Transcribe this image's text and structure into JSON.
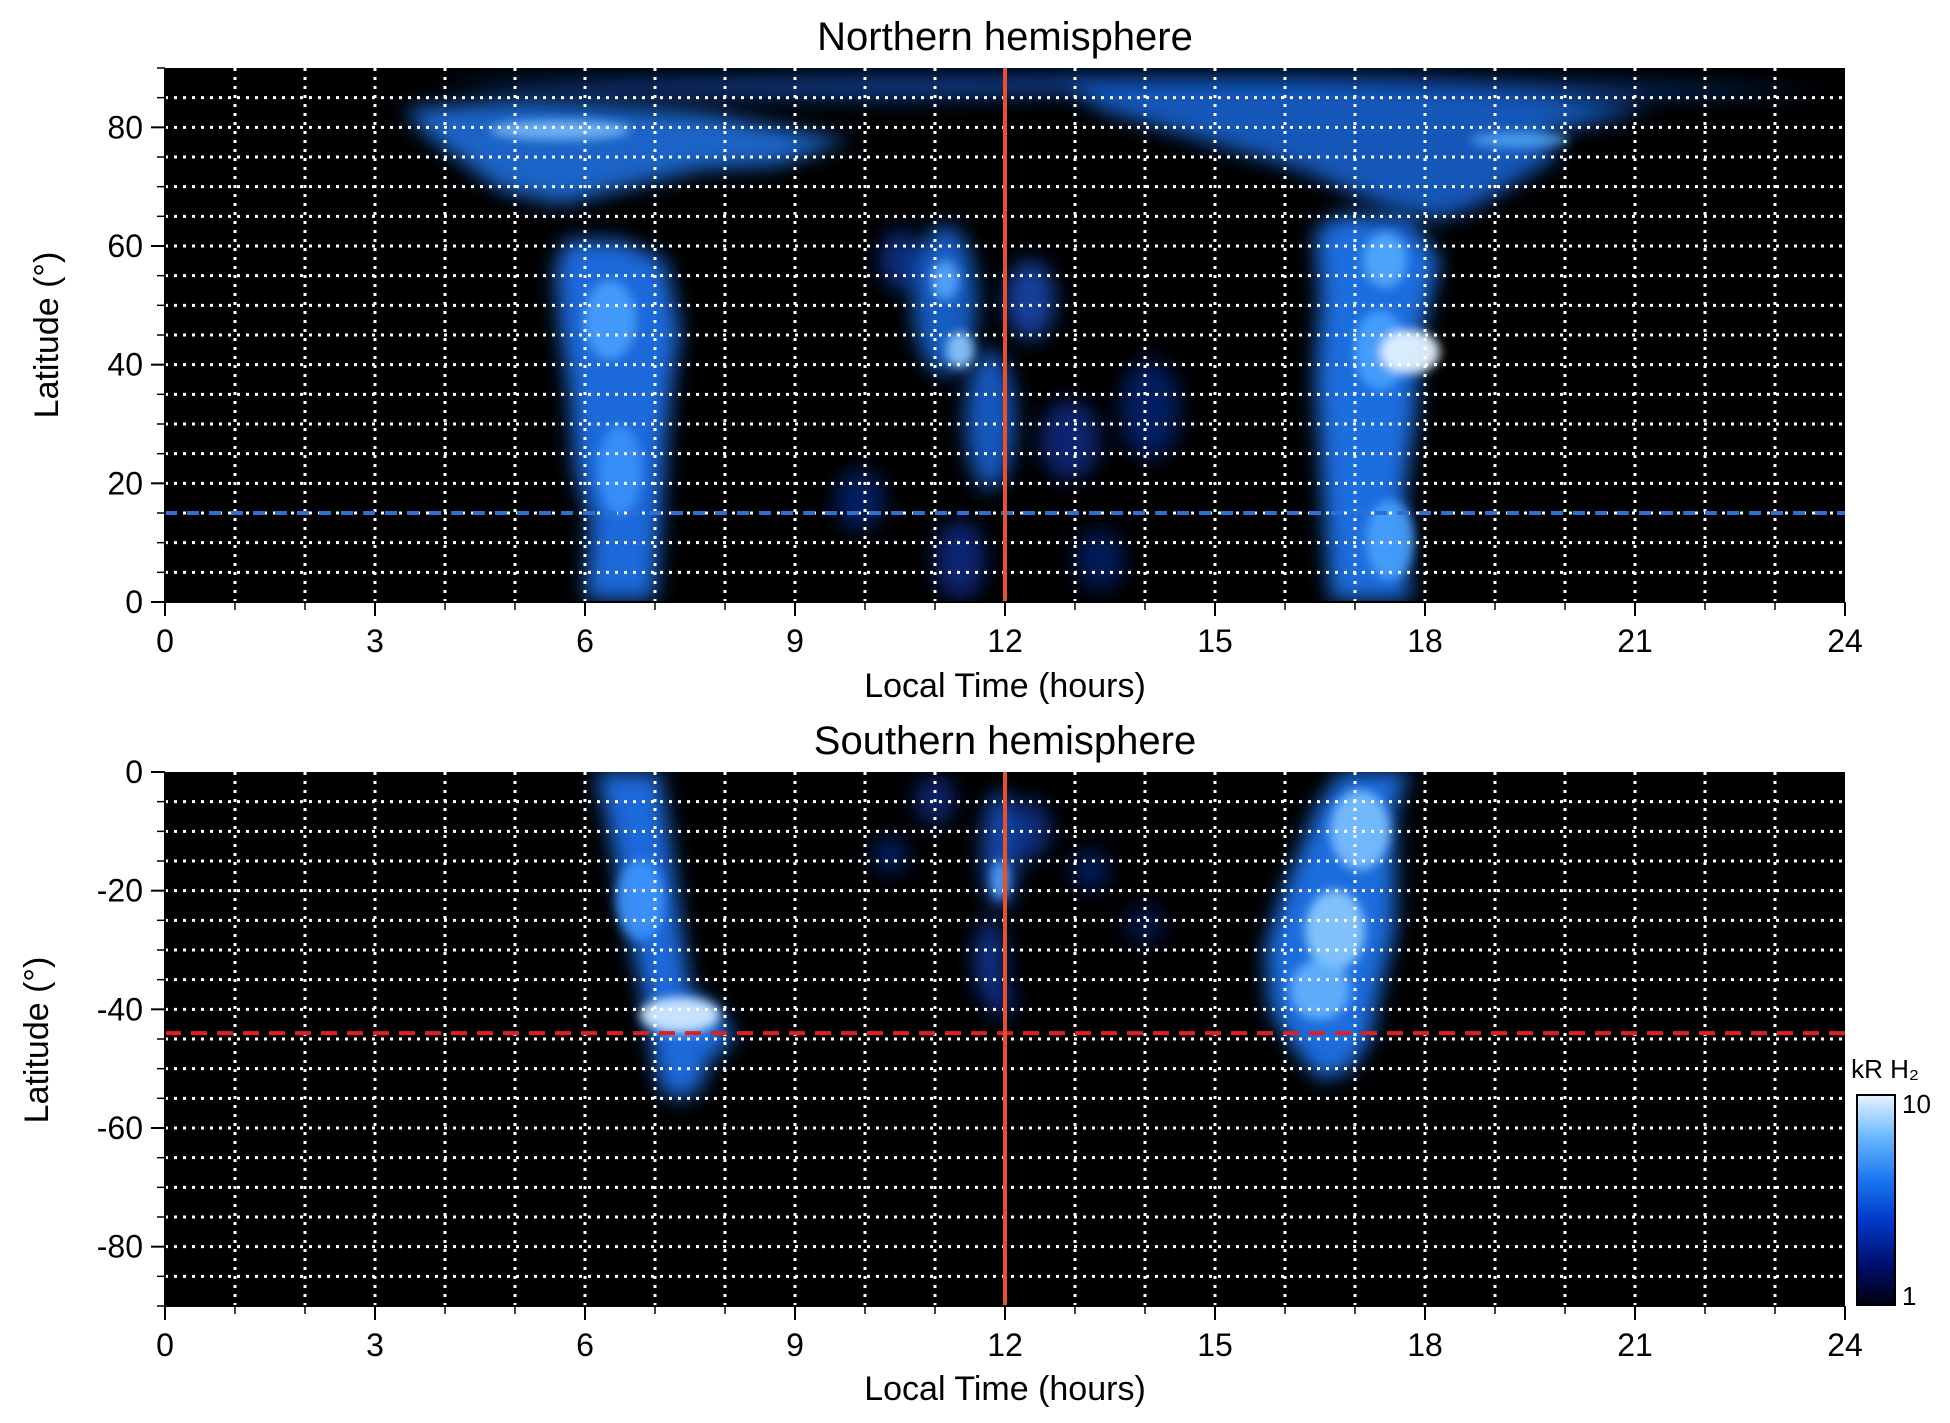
{
  "chart_data": [
    {
      "type": "heatmap",
      "title": "Northern hemisphere",
      "xlabel": "Local Time (hours)",
      "ylabel": "Latitude (°)",
      "xlim": [
        0,
        24
      ],
      "ylim": [
        0,
        90
      ],
      "xticks": [
        0,
        3,
        6,
        9,
        12,
        15,
        18,
        21,
        24
      ],
      "yticks": [
        0,
        20,
        40,
        60,
        80
      ],
      "grid": true,
      "vline": {
        "x": 12,
        "color": "#e8502a"
      },
      "hline": {
        "y": 15,
        "color": "#2e6fd6",
        "style": "dashed"
      },
      "features": [
        {
          "lt": 6.6,
          "lat_range": [
            0,
            60
          ],
          "intensity": 6
        },
        {
          "lt": 17.3,
          "lat_range": [
            0,
            65
          ],
          "intensity": 7
        },
        {
          "lt": 17.5,
          "lat": 42,
          "intensity": 10
        },
        {
          "lt_range": [
            3.5,
            11
          ],
          "lat_range": [
            65,
            88
          ],
          "intensity": 5
        },
        {
          "lt_range": [
            12,
            24
          ],
          "lat_range": [
            65,
            88
          ],
          "intensity": 4
        },
        {
          "lt_range": [
            9.5,
            14.5
          ],
          "lat_range": [
            0,
            65
          ],
          "intensity": 3
        }
      ]
    },
    {
      "type": "heatmap",
      "title": "Southern hemisphere",
      "xlabel": "Local Time (hours)",
      "ylabel": "Latitude (°)",
      "xlim": [
        0,
        24
      ],
      "ylim": [
        -90,
        0
      ],
      "xticks": [
        0,
        3,
        6,
        9,
        12,
        15,
        18,
        21,
        24
      ],
      "yticks": [
        0,
        -20,
        -40,
        -60,
        -80
      ],
      "grid": true,
      "vline": {
        "x": 12,
        "color": "#e8502a"
      },
      "hline": {
        "y": -44,
        "color": "#e02020",
        "style": "dashed"
      },
      "features": [
        {
          "lt": 6.8,
          "lat_range": [
            -57,
            0
          ],
          "intensity": 6
        },
        {
          "lt": 7.4,
          "lat": -41,
          "intensity": 9
        },
        {
          "lt": 16.7,
          "lat_range": [
            -52,
            0
          ],
          "intensity": 8
        },
        {
          "lt_range": [
            10.5,
            15
          ],
          "lat_range": [
            -40,
            0
          ],
          "intensity": 3
        }
      ]
    }
  ],
  "colorbar": {
    "label": "kR H₂",
    "min": 1,
    "max": 10,
    "scale": "log",
    "min_label": "1",
    "max_label": "10",
    "colors": [
      "#000010",
      "#001070",
      "#0038c8",
      "#1a78f0",
      "#6ab8ff",
      "#e8f4ff"
    ]
  }
}
